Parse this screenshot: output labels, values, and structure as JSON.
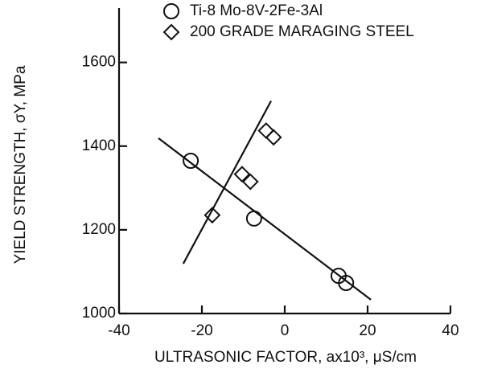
{
  "chart_data": {
    "type": "scatter",
    "x_label": "ULTRASONIC FACTOR, ax10³, μS/cm",
    "y_label": "YIELD STRENGTH, σY, MPa",
    "xlim": [
      -40,
      40
    ],
    "xticks": [
      -40,
      -20,
      0,
      20,
      40
    ],
    "ylim": [
      1000,
      1730
    ],
    "yticks": [
      1000,
      1200,
      1400,
      1600
    ],
    "grid": false,
    "series": [
      {
        "name": "Ti-8 Mo-8V-2Fe-3Al",
        "marker": "circle",
        "color": "#111111",
        "x": [
          -22.7,
          -7.4,
          13,
          14.8
        ],
        "values": [
          1365,
          1227,
          1090,
          1073
        ],
        "fit": {
          "x": [
            -30.5,
            20.8
          ],
          "values": [
            1419,
            1033
          ]
        }
      },
      {
        "name": "200 GRADE MARAGING STEEL",
        "marker": "diamond",
        "color": "#111111",
        "x": [
          -17.5,
          -10.3,
          -8.3,
          -4.5,
          -2.7
        ],
        "values": [
          1235,
          1333,
          1315,
          1437,
          1421
        ],
        "fit": {
          "x": [
            -24.5,
            -3.3
          ],
          "values": [
            1119,
            1508
          ]
        }
      }
    ]
  }
}
